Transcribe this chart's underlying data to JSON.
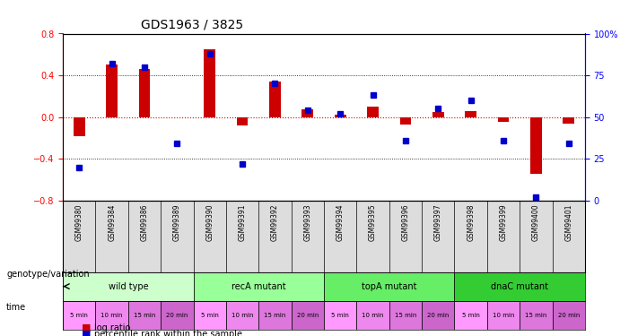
{
  "title": "GDS1963 / 3825",
  "samples": [
    "GSM99380",
    "GSM99384",
    "GSM99386",
    "GSM99389",
    "GSM99390",
    "GSM99391",
    "GSM99392",
    "GSM99393",
    "GSM99394",
    "GSM99395",
    "GSM99396",
    "GSM99397",
    "GSM99398",
    "GSM99399",
    "GSM99400",
    "GSM99401"
  ],
  "log_ratio": [
    -0.18,
    0.5,
    0.46,
    0.0,
    0.65,
    -0.08,
    0.34,
    0.07,
    0.02,
    0.1,
    -0.07,
    0.05,
    0.06,
    -0.05,
    -0.54,
    -0.06
  ],
  "percentile": [
    20,
    82,
    80,
    34,
    88,
    22,
    70,
    54,
    52,
    63,
    36,
    55,
    60,
    36,
    2,
    34
  ],
  "groups": [
    {
      "label": "wild type",
      "start": 0,
      "end": 4,
      "color": "#ccffcc"
    },
    {
      "label": "recA mutant",
      "start": 4,
      "end": 8,
      "color": "#99ff99"
    },
    {
      "label": "topA mutant",
      "start": 8,
      "end": 12,
      "color": "#66ee66"
    },
    {
      "label": "dnaC mutant",
      "start": 12,
      "end": 16,
      "color": "#33cc33"
    }
  ],
  "time_labels": [
    "5 min",
    "10 min",
    "15 min",
    "20 min",
    "5 min",
    "10 min",
    "15 min",
    "20 min",
    "5 min",
    "10 min",
    "15 min",
    "20 min",
    "5 min",
    "10 min",
    "15 min",
    "20 min"
  ],
  "time_colors": [
    "#ff99ff",
    "#ee88ee",
    "#dd77dd",
    "#cc66cc",
    "#ff99ff",
    "#ee88ee",
    "#dd77dd",
    "#cc66cc",
    "#ff99ff",
    "#ee88ee",
    "#dd77dd",
    "#cc66cc",
    "#ff99ff",
    "#ee88ee",
    "#dd77dd",
    "#cc66cc"
  ],
  "ylim": [
    -0.8,
    0.8
  ],
  "yticks_left": [
    -0.8,
    -0.4,
    0.0,
    0.4,
    0.8
  ],
  "yticks_right": [
    0,
    25,
    50,
    75,
    100
  ],
  "bar_color_red": "#cc0000",
  "marker_color_blue": "#0000cc",
  "dotted_line_color": "#000000",
  "zero_line_color": "#cc0000",
  "bg_color": "#ffffff"
}
